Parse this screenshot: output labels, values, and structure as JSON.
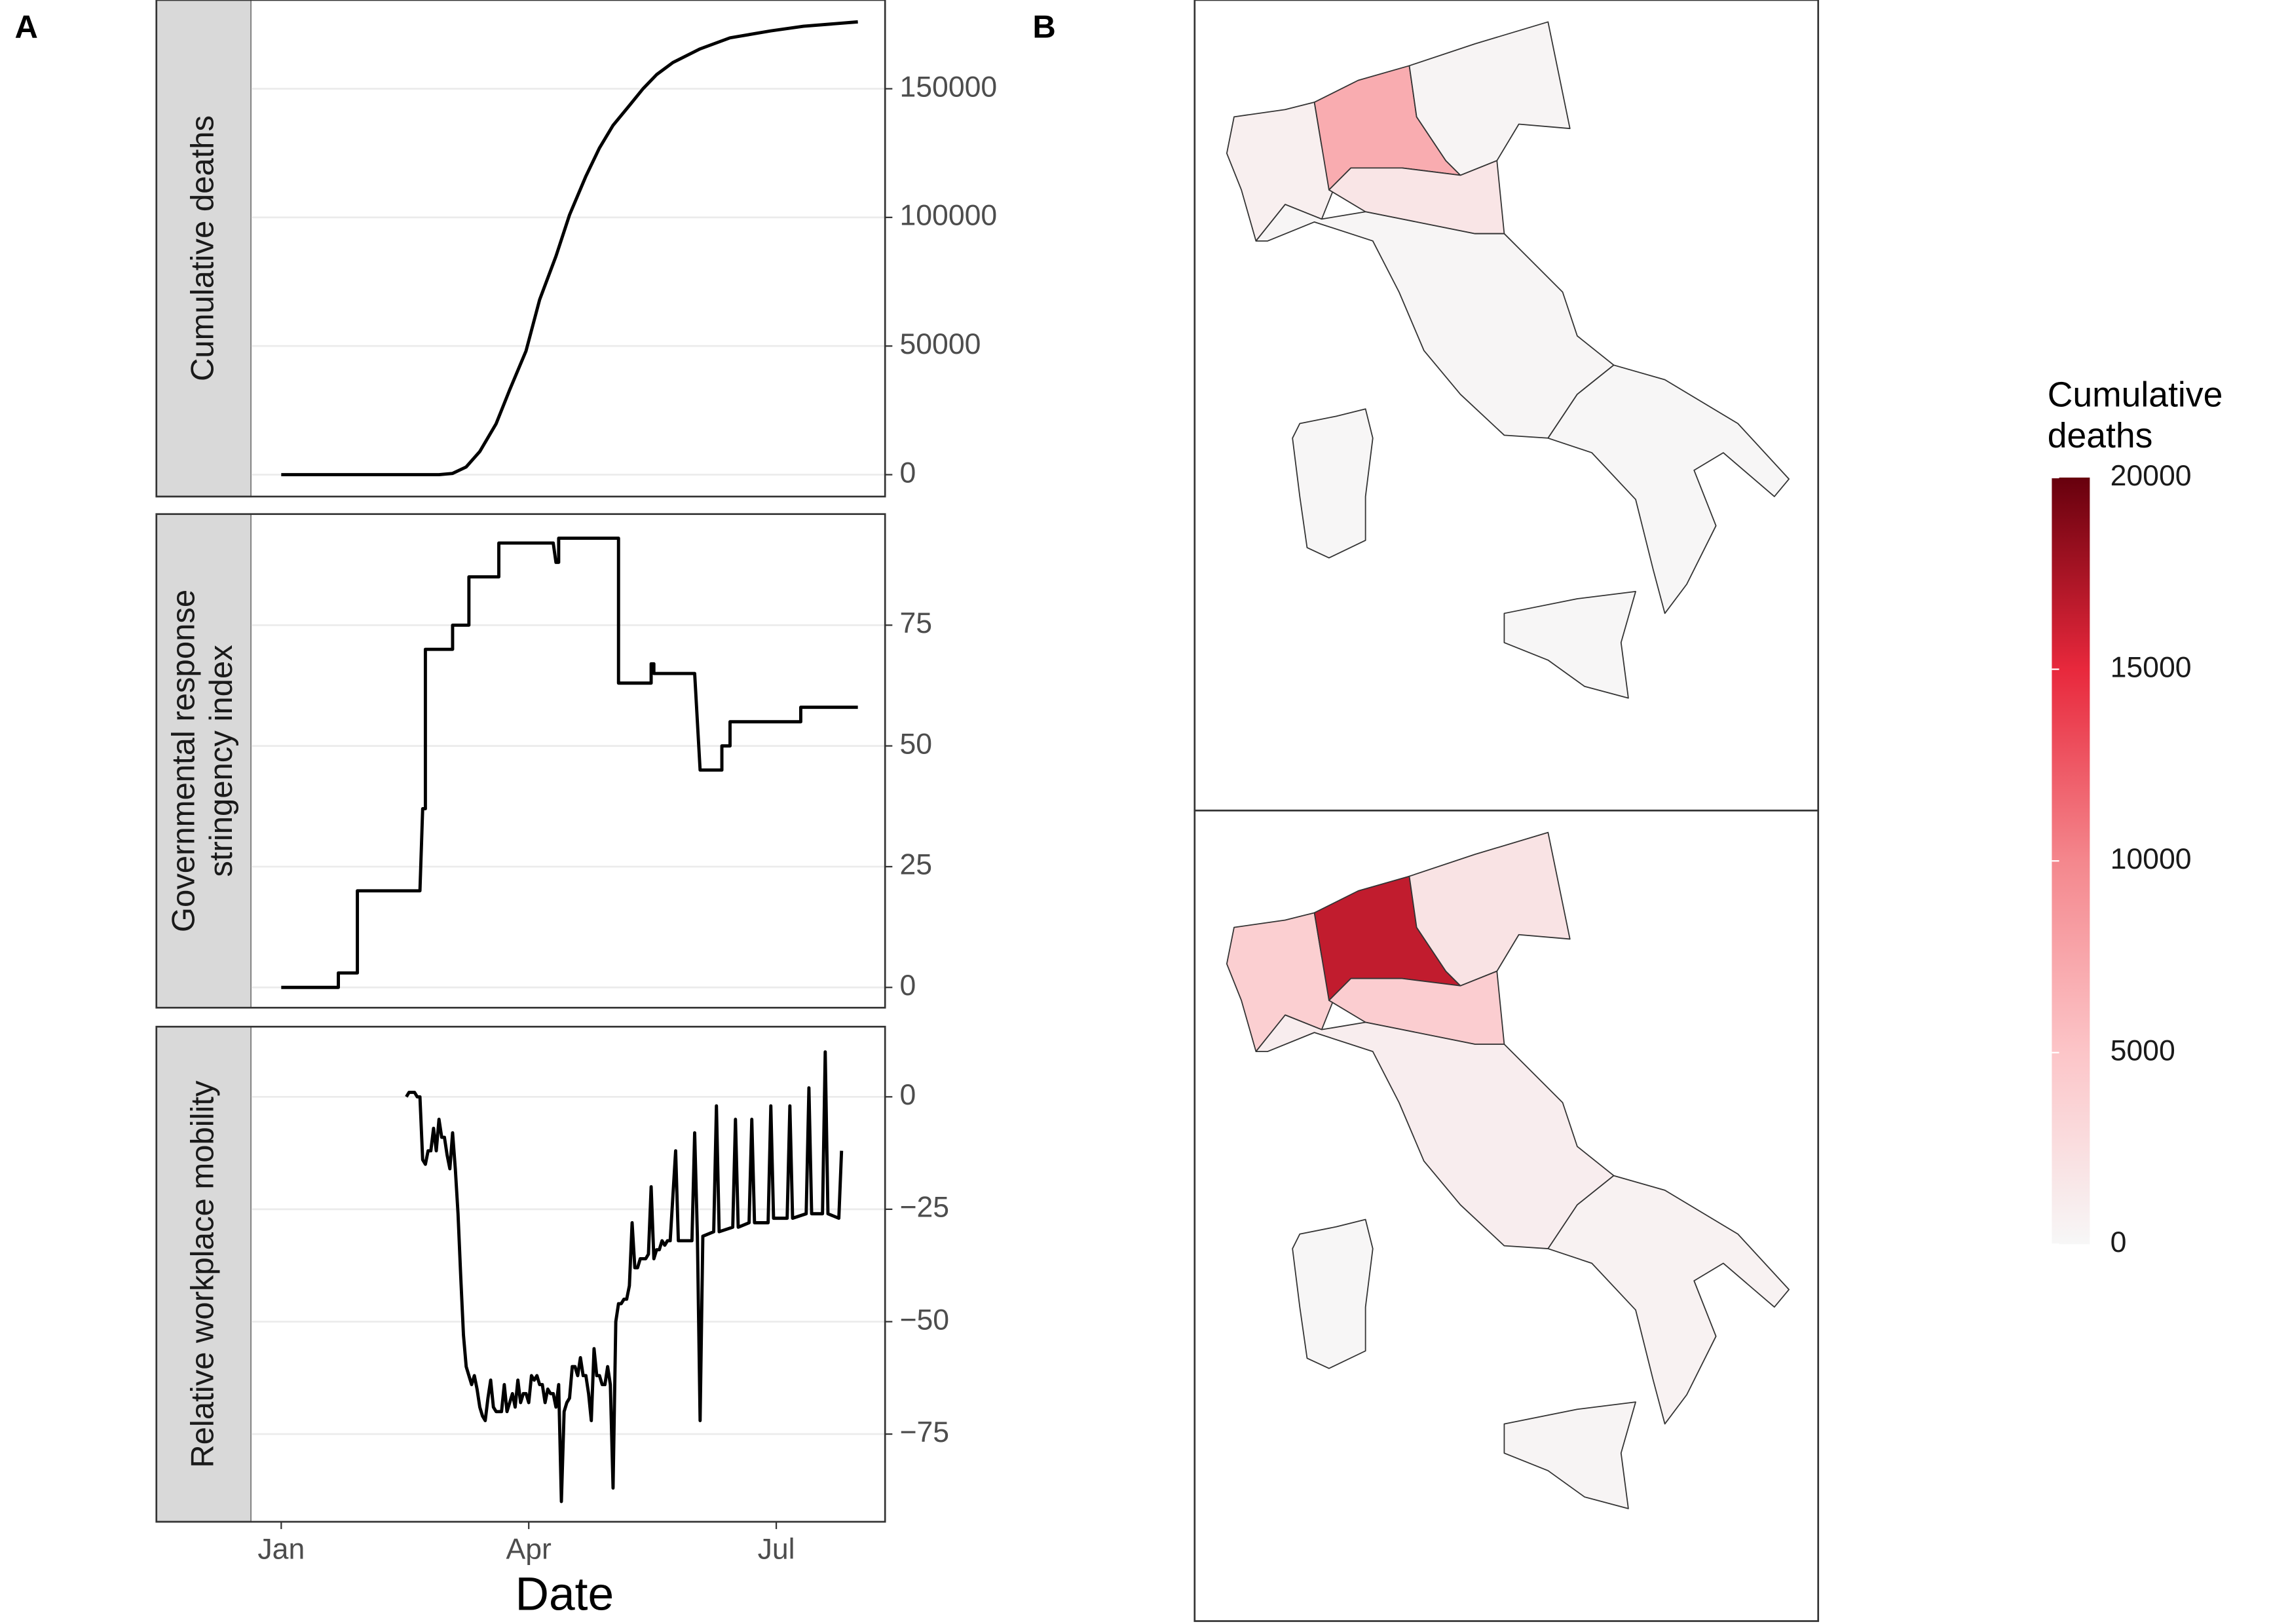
{
  "panel_labels": [
    "A",
    "B"
  ],
  "chart_data": [
    {
      "type": "line",
      "ylabel": [
        "Cumulative deaths"
      ],
      "x": [
        0,
        40,
        58,
        63,
        68,
        73,
        79,
        84,
        90,
        95,
        101,
        106,
        112,
        117,
        122,
        128,
        133,
        138,
        144,
        154,
        165,
        180,
        192,
        212
      ],
      "values": [
        0,
        0,
        0,
        500,
        3000,
        9000,
        19800,
        33000,
        48100,
        68000,
        84900,
        101000,
        116000,
        127000,
        135800,
        143500,
        150000,
        155500,
        160200,
        165500,
        169800,
        172500,
        174300,
        176000
      ],
      "color": "#000000",
      "xlim": [
        -11,
        222
      ],
      "ylim": [
        -8500,
        184500
      ],
      "yticks": [
        0,
        50000,
        100000,
        150000
      ],
      "grid": true
    },
    {
      "type": "line",
      "ylabel": [
        "Governmental response",
        "stringency index"
      ],
      "x": [
        0,
        21,
        21,
        28,
        28,
        51,
        52,
        53,
        53,
        63,
        63,
        69,
        69,
        80,
        80,
        100,
        101,
        102,
        102,
        124,
        124,
        136,
        136,
        137,
        137,
        152,
        154,
        162,
        162,
        165,
        165,
        191,
        191,
        212
      ],
      "values": [
        0,
        0,
        3,
        3,
        20,
        20,
        37,
        37,
        70,
        70,
        75,
        75,
        85,
        85,
        92,
        92,
        88,
        88,
        93,
        93,
        63,
        63,
        67,
        67,
        65,
        65,
        45,
        45,
        50,
        50,
        55,
        55,
        58,
        58
      ],
      "color": "#000000",
      "xlim": [
        -11,
        222
      ],
      "ylim": [
        -4.2,
        98
      ],
      "yticks": [
        0,
        25,
        50,
        75
      ],
      "grid": true
    },
    {
      "type": "line",
      "ylabel": [
        "Relative workplace mobility"
      ],
      "xlabel": "Date",
      "x": [
        46,
        47,
        48,
        49,
        50,
        51,
        52,
        53,
        54,
        55,
        56,
        57,
        58,
        59,
        60,
        61,
        62,
        63,
        64,
        65,
        66,
        67,
        68,
        69,
        70,
        71,
        72,
        73,
        74,
        75,
        76,
        77,
        78,
        79,
        80,
        81,
        82,
        83,
        84,
        85,
        86,
        87,
        88,
        89,
        90,
        91,
        92,
        93,
        94,
        95,
        96,
        97,
        98,
        99,
        100,
        101,
        102,
        103,
        104,
        105,
        106,
        107,
        108,
        109,
        110,
        111,
        112,
        113,
        114,
        115,
        116,
        117,
        118,
        119,
        120,
        121,
        122,
        123,
        124,
        125,
        126,
        127,
        128,
        129,
        130,
        131,
        132,
        133,
        134,
        135,
        136,
        137,
        138,
        139,
        140,
        141,
        142,
        143,
        145,
        146,
        151,
        152,
        153,
        154,
        155,
        159,
        160,
        161,
        166,
        167,
        168,
        172,
        173,
        174,
        179,
        180,
        181,
        186,
        187,
        188,
        193,
        194,
        195,
        199,
        200,
        201,
        205,
        206
      ],
      "values": [
        0,
        1,
        1,
        1,
        0,
        0,
        -14,
        -15,
        -12,
        -12,
        -7,
        -12,
        -5,
        -9,
        -9,
        -13,
        -16,
        -8,
        -16,
        -26,
        -40,
        -53,
        -60,
        -62,
        -64,
        -62,
        -65,
        -69,
        -71,
        -72,
        -67,
        -63,
        -69,
        -70,
        -70,
        -70,
        -64,
        -70,
        -68,
        -66,
        -69,
        -63,
        -68,
        -66,
        -66,
        -68,
        -62,
        -63,
        -62,
        -64,
        -64,
        -68,
        -65,
        -66,
        -66,
        -69,
        -64,
        -90,
        -70,
        -68,
        -67,
        -60,
        -60,
        -62,
        -58,
        -62,
        -62,
        -66,
        -72,
        -56,
        -62,
        -62,
        -64,
        -64,
        -60,
        -64,
        -87,
        -50,
        -46,
        -46,
        -45,
        -45,
        -42,
        -28,
        -38,
        -38,
        -36,
        -36,
        -36,
        -35,
        -20,
        -36,
        -34,
        -34,
        -32,
        -33,
        -32,
        -32,
        -12,
        -32,
        -32,
        -8,
        -31,
        -72,
        -31,
        -30,
        -2,
        -30,
        -29,
        -5,
        -29,
        -28,
        -5,
        -28,
        -28,
        -2,
        -27,
        -27,
        -2,
        -27,
        -26,
        2,
        -26,
        -26,
        10,
        -26,
        -27,
        -12
      ],
      "color": "#000000",
      "xlim": [
        -11,
        222
      ],
      "ylim": [
        -94.5,
        15.6
      ],
      "yticks": [
        {
          "value": 0,
          "label": "0"
        },
        {
          "value": -25,
          "label": "−25"
        },
        {
          "value": -50,
          "label": "−50"
        },
        {
          "value": -75,
          "label": "−75"
        }
      ],
      "xticks": [
        {
          "value": 0,
          "label": "Jan"
        },
        {
          "value": 91,
          "label": "Apr"
        },
        {
          "value": 182,
          "label": "Jul"
        }
      ],
      "grid": true
    },
    {
      "type": "choropleth",
      "legend_title": [
        "Cumulative",
        "deaths"
      ],
      "clim": [
        0,
        20000
      ],
      "cticks": [
        0,
        5000,
        10000,
        15000,
        20000
      ],
      "colors": [
        "#f7f7f7",
        "#fcc5c8",
        "#f4878d",
        "#e8283c",
        "#67000d"
      ],
      "panels": [
        {
          "values": [
            800,
            7000,
            300,
            1800,
            200,
            150,
            100,
            80
          ]
        },
        {
          "values": [
            4000,
            16500,
            2000,
            4200,
            1000,
            500,
            300,
            120
          ]
        }
      ]
    }
  ]
}
